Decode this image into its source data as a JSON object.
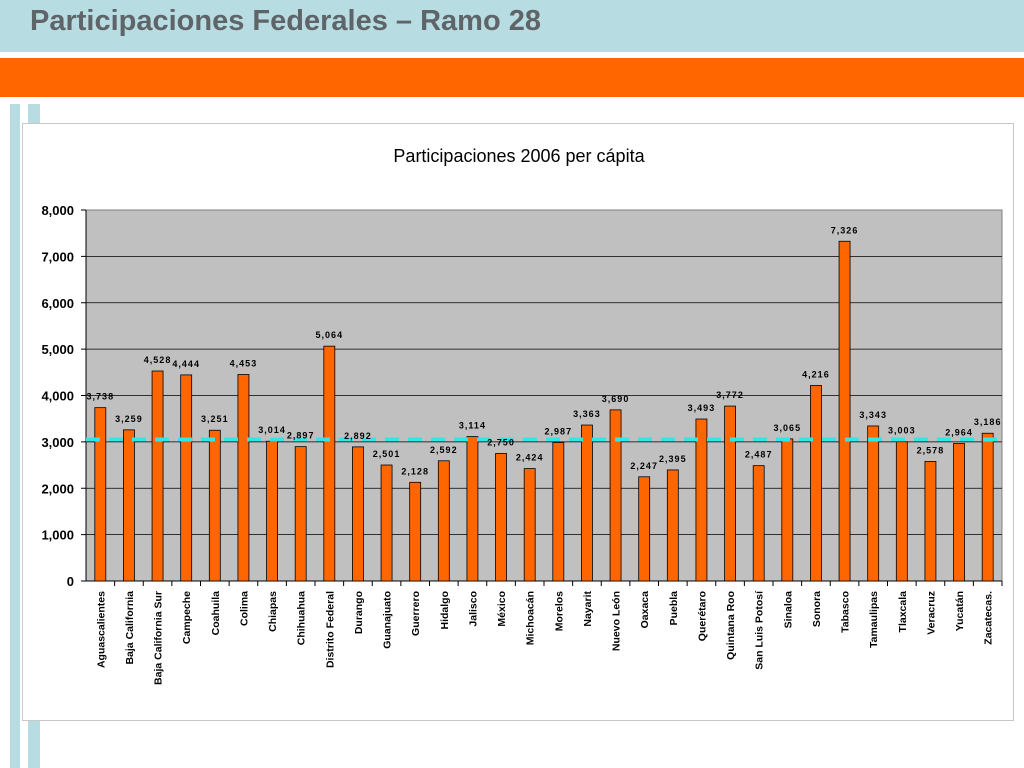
{
  "page": {
    "title": "Participaciones Federales – Ramo 28"
  },
  "colors": {
    "header_band": "#b7dde2",
    "accent_band": "#ff6600",
    "bar_fill": "#ff6600",
    "plot_background": "#c0c0c0",
    "average_line": "#33e6e6"
  },
  "chart_data": {
    "type": "bar",
    "title": "Participaciones 2006 per cápita",
    "xlabel": "",
    "ylabel": "",
    "ylim": [
      0,
      8000
    ],
    "yticks": [
      0,
      1000,
      2000,
      3000,
      4000,
      5000,
      6000,
      7000,
      8000
    ],
    "ytick_labels": [
      "0",
      "1,000",
      "2,000",
      "3,000",
      "4,000",
      "5,000",
      "6,000",
      "7,000",
      "8,000"
    ],
    "grid": true,
    "legend": "none",
    "categories": [
      "Aguascalientes",
      "Baja California",
      "Baja California Sur",
      "Campeche",
      "Coahuila",
      "Colima",
      "Chiapas",
      "Chihuahua",
      "Distrito Federal",
      "Durango",
      "Guanajuato",
      "Guerrero",
      "Hidalgo",
      "Jalisco",
      "México",
      "Michoacán",
      "Morelos",
      "Nayarit",
      "Nuevo León",
      "Oaxaca",
      "Puebla",
      "Querétaro",
      "Quintana Roo",
      "San Luis Potosí",
      "Sinaloa",
      "Sonora",
      "Tabasco",
      "Tamaulipas",
      "Tlaxcala",
      "Veracruz",
      "Yucatán",
      "Zacatecas."
    ],
    "values": [
      3738,
      3259,
      4528,
      4444,
      3251,
      4453,
      3014,
      2897,
      5064,
      2892,
      2501,
      2128,
      2592,
      3114,
      2750,
      2424,
      2987,
      3363,
      3690,
      2247,
      2395,
      3493,
      3772,
      2487,
      3065,
      4216,
      7326,
      3343,
      3003,
      2578,
      2964,
      3186
    ],
    "data_labels": [
      "3,738",
      "3,259",
      "4,528",
      "4,444",
      "3,251",
      "4,453",
      "3,014",
      "2,897",
      "5,064",
      "2,892",
      "2,501",
      "2,128",
      "2,592",
      "3,114",
      "2,750",
      "2,424",
      "2,987",
      "3,363",
      "3,690",
      "2,247",
      "2,395",
      "3,493",
      "3,772",
      "2,487",
      "3,065",
      "4,216",
      "7,326",
      "3,343",
      "3,003",
      "2,578",
      "2,964",
      "3,186"
    ],
    "reference_line": {
      "value": 3050,
      "style": "dashed"
    }
  }
}
